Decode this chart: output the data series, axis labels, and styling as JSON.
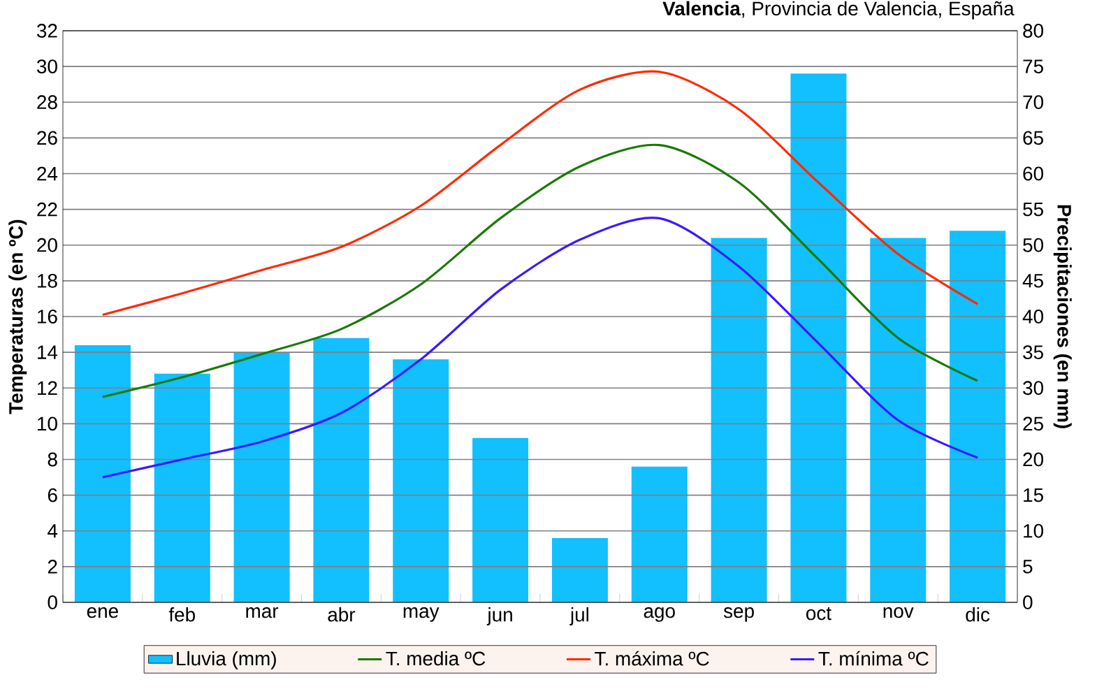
{
  "chart_data": {
    "type": "line",
    "title": "**Valencia**, Provincia de Valencia, España",
    "categories": [
      "ene",
      "feb",
      "mar",
      "abr",
      "may",
      "jun",
      "jul",
      "ago",
      "sep",
      "oct",
      "nov",
      "dic"
    ],
    "series": [
      {
        "name": "Lluvia (mm)",
        "type": "bar",
        "axis": "y2",
        "color": "#12bfff",
        "values": [
          36,
          32,
          35,
          37,
          34,
          23,
          9,
          19,
          51,
          74,
          51,
          52
        ]
      },
      {
        "name": "T. media ºC",
        "color": "#1a7a00",
        "values": [
          11.5,
          12.6,
          13.9,
          15.3,
          17.8,
          21.5,
          24.4,
          25.6,
          23.5,
          19.2,
          14.8,
          12.4
        ]
      },
      {
        "name": "T. máxima ºC",
        "color": "#ff2a00",
        "values": [
          16.1,
          17.3,
          18.6,
          19.9,
          22.2,
          25.6,
          28.7,
          29.7,
          27.6,
          23.5,
          19.5,
          16.7
        ]
      },
      {
        "name": "T. mínima ºC",
        "color": "#3a1aff",
        "values": [
          7.0,
          8.0,
          9.0,
          10.6,
          13.6,
          17.5,
          20.3,
          21.5,
          18.8,
          14.5,
          10.2,
          8.1
        ]
      }
    ],
    "ylabel": "Temperaturas (en ºC)",
    "y2label": "Precipitaciones (en mm)",
    "ylim": [
      0,
      32
    ],
    "yticks": [
      0,
      2,
      4,
      6,
      8,
      10,
      12,
      14,
      16,
      18,
      20,
      22,
      24,
      26,
      28,
      30,
      32
    ],
    "y2lim": [
      0,
      80
    ],
    "y2ticks": [
      0,
      5,
      10,
      15,
      20,
      25,
      30,
      35,
      40,
      45,
      50,
      55,
      60,
      65,
      70,
      75,
      80
    ],
    "grid": "y",
    "legend": "bottom",
    "line_style": "solid",
    "marker": "none"
  }
}
